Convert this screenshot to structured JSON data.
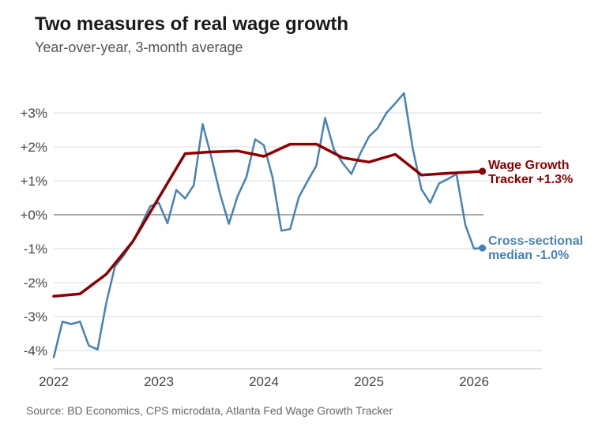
{
  "title": "Two measures of real wage growth",
  "subtitle": "Year-over-year, 3-month average",
  "source": "Source: BD Economics, CPS microdata, Atlanta Fed Wage Growth Tracker",
  "chart_data": {
    "type": "line",
    "title": "Two measures of real wage growth",
    "subtitle": "Year-over-year, 3-month average",
    "xlabel": "",
    "ylabel": "",
    "xlim": [
      2022.0,
      2026.6
    ],
    "ylim": [
      -4.4,
      3.6
    ],
    "x_ticks": [
      2022,
      2023,
      2024,
      2025,
      2026
    ],
    "x_tick_labels": [
      "2022",
      "2023",
      "2024",
      "2025",
      "2026"
    ],
    "y_ticks": [
      -4,
      -3,
      -2,
      -1,
      0,
      1,
      2,
      3
    ],
    "y_tick_labels": [
      "-4%",
      "-3%",
      "-2%",
      "-1%",
      "+0%",
      "+1%",
      "+2%",
      "+3%"
    ],
    "grid": "horizontal",
    "zero_line": true,
    "legend": "direct-labels-right",
    "series": [
      {
        "name_lines": [
          "Wage Growth",
          "Tracker  +1.3%"
        ],
        "color": "#8b0000",
        "end_marker": true,
        "points": [
          [
            2022.0,
            -2.4
          ],
          [
            2022.25,
            -2.33
          ],
          [
            2022.5,
            -1.75
          ],
          [
            2022.75,
            -0.8
          ],
          [
            2023.0,
            0.5
          ],
          [
            2023.25,
            1.8
          ],
          [
            2023.5,
            1.85
          ],
          [
            2023.75,
            1.88
          ],
          [
            2024.0,
            1.72
          ],
          [
            2024.25,
            2.08
          ],
          [
            2024.5,
            2.08
          ],
          [
            2024.75,
            1.68
          ],
          [
            2025.0,
            1.55
          ],
          [
            2025.25,
            1.78
          ],
          [
            2025.5,
            1.17
          ],
          [
            2025.75,
            1.22
          ],
          [
            2026.08,
            1.28
          ]
        ]
      },
      {
        "name_lines": [
          "Cross-sectional",
          "median  -1.0%"
        ],
        "color": "#4682b4",
        "end_marker": true,
        "points": [
          [
            2022.0,
            -4.2
          ],
          [
            2022.083,
            -3.15
          ],
          [
            2022.167,
            -3.22
          ],
          [
            2022.25,
            -3.15
          ],
          [
            2022.333,
            -3.85
          ],
          [
            2022.417,
            -3.97
          ],
          [
            2022.5,
            -2.6
          ],
          [
            2022.583,
            -1.52
          ],
          [
            2022.667,
            -1.2
          ],
          [
            2022.75,
            -0.8
          ],
          [
            2022.833,
            -0.3
          ],
          [
            2022.917,
            0.25
          ],
          [
            2023.0,
            0.35
          ],
          [
            2023.083,
            -0.25
          ],
          [
            2023.167,
            0.73
          ],
          [
            2023.25,
            0.48
          ],
          [
            2023.333,
            0.87
          ],
          [
            2023.417,
            2.67
          ],
          [
            2023.5,
            1.7
          ],
          [
            2023.583,
            0.62
          ],
          [
            2023.667,
            -0.27
          ],
          [
            2023.75,
            0.55
          ],
          [
            2023.833,
            1.1
          ],
          [
            2023.917,
            2.22
          ],
          [
            2024.0,
            2.05
          ],
          [
            2024.083,
            1.1
          ],
          [
            2024.167,
            -0.47
          ],
          [
            2024.25,
            -0.42
          ],
          [
            2024.333,
            0.52
          ],
          [
            2024.417,
            1.0
          ],
          [
            2024.5,
            1.45
          ],
          [
            2024.583,
            2.85
          ],
          [
            2024.667,
            1.92
          ],
          [
            2024.75,
            1.52
          ],
          [
            2024.833,
            1.2
          ],
          [
            2024.917,
            1.8
          ],
          [
            2025.0,
            2.3
          ],
          [
            2025.083,
            2.55
          ],
          [
            2025.167,
            3.0
          ],
          [
            2025.25,
            3.28
          ],
          [
            2025.333,
            3.58
          ],
          [
            2025.417,
            1.95
          ],
          [
            2025.5,
            0.75
          ],
          [
            2025.583,
            0.35
          ],
          [
            2025.667,
            0.92
          ],
          [
            2025.75,
            1.05
          ],
          [
            2025.833,
            1.2
          ],
          [
            2025.917,
            -0.3
          ],
          [
            2026.0,
            -1.0
          ],
          [
            2026.08,
            -0.98
          ]
        ]
      }
    ]
  }
}
